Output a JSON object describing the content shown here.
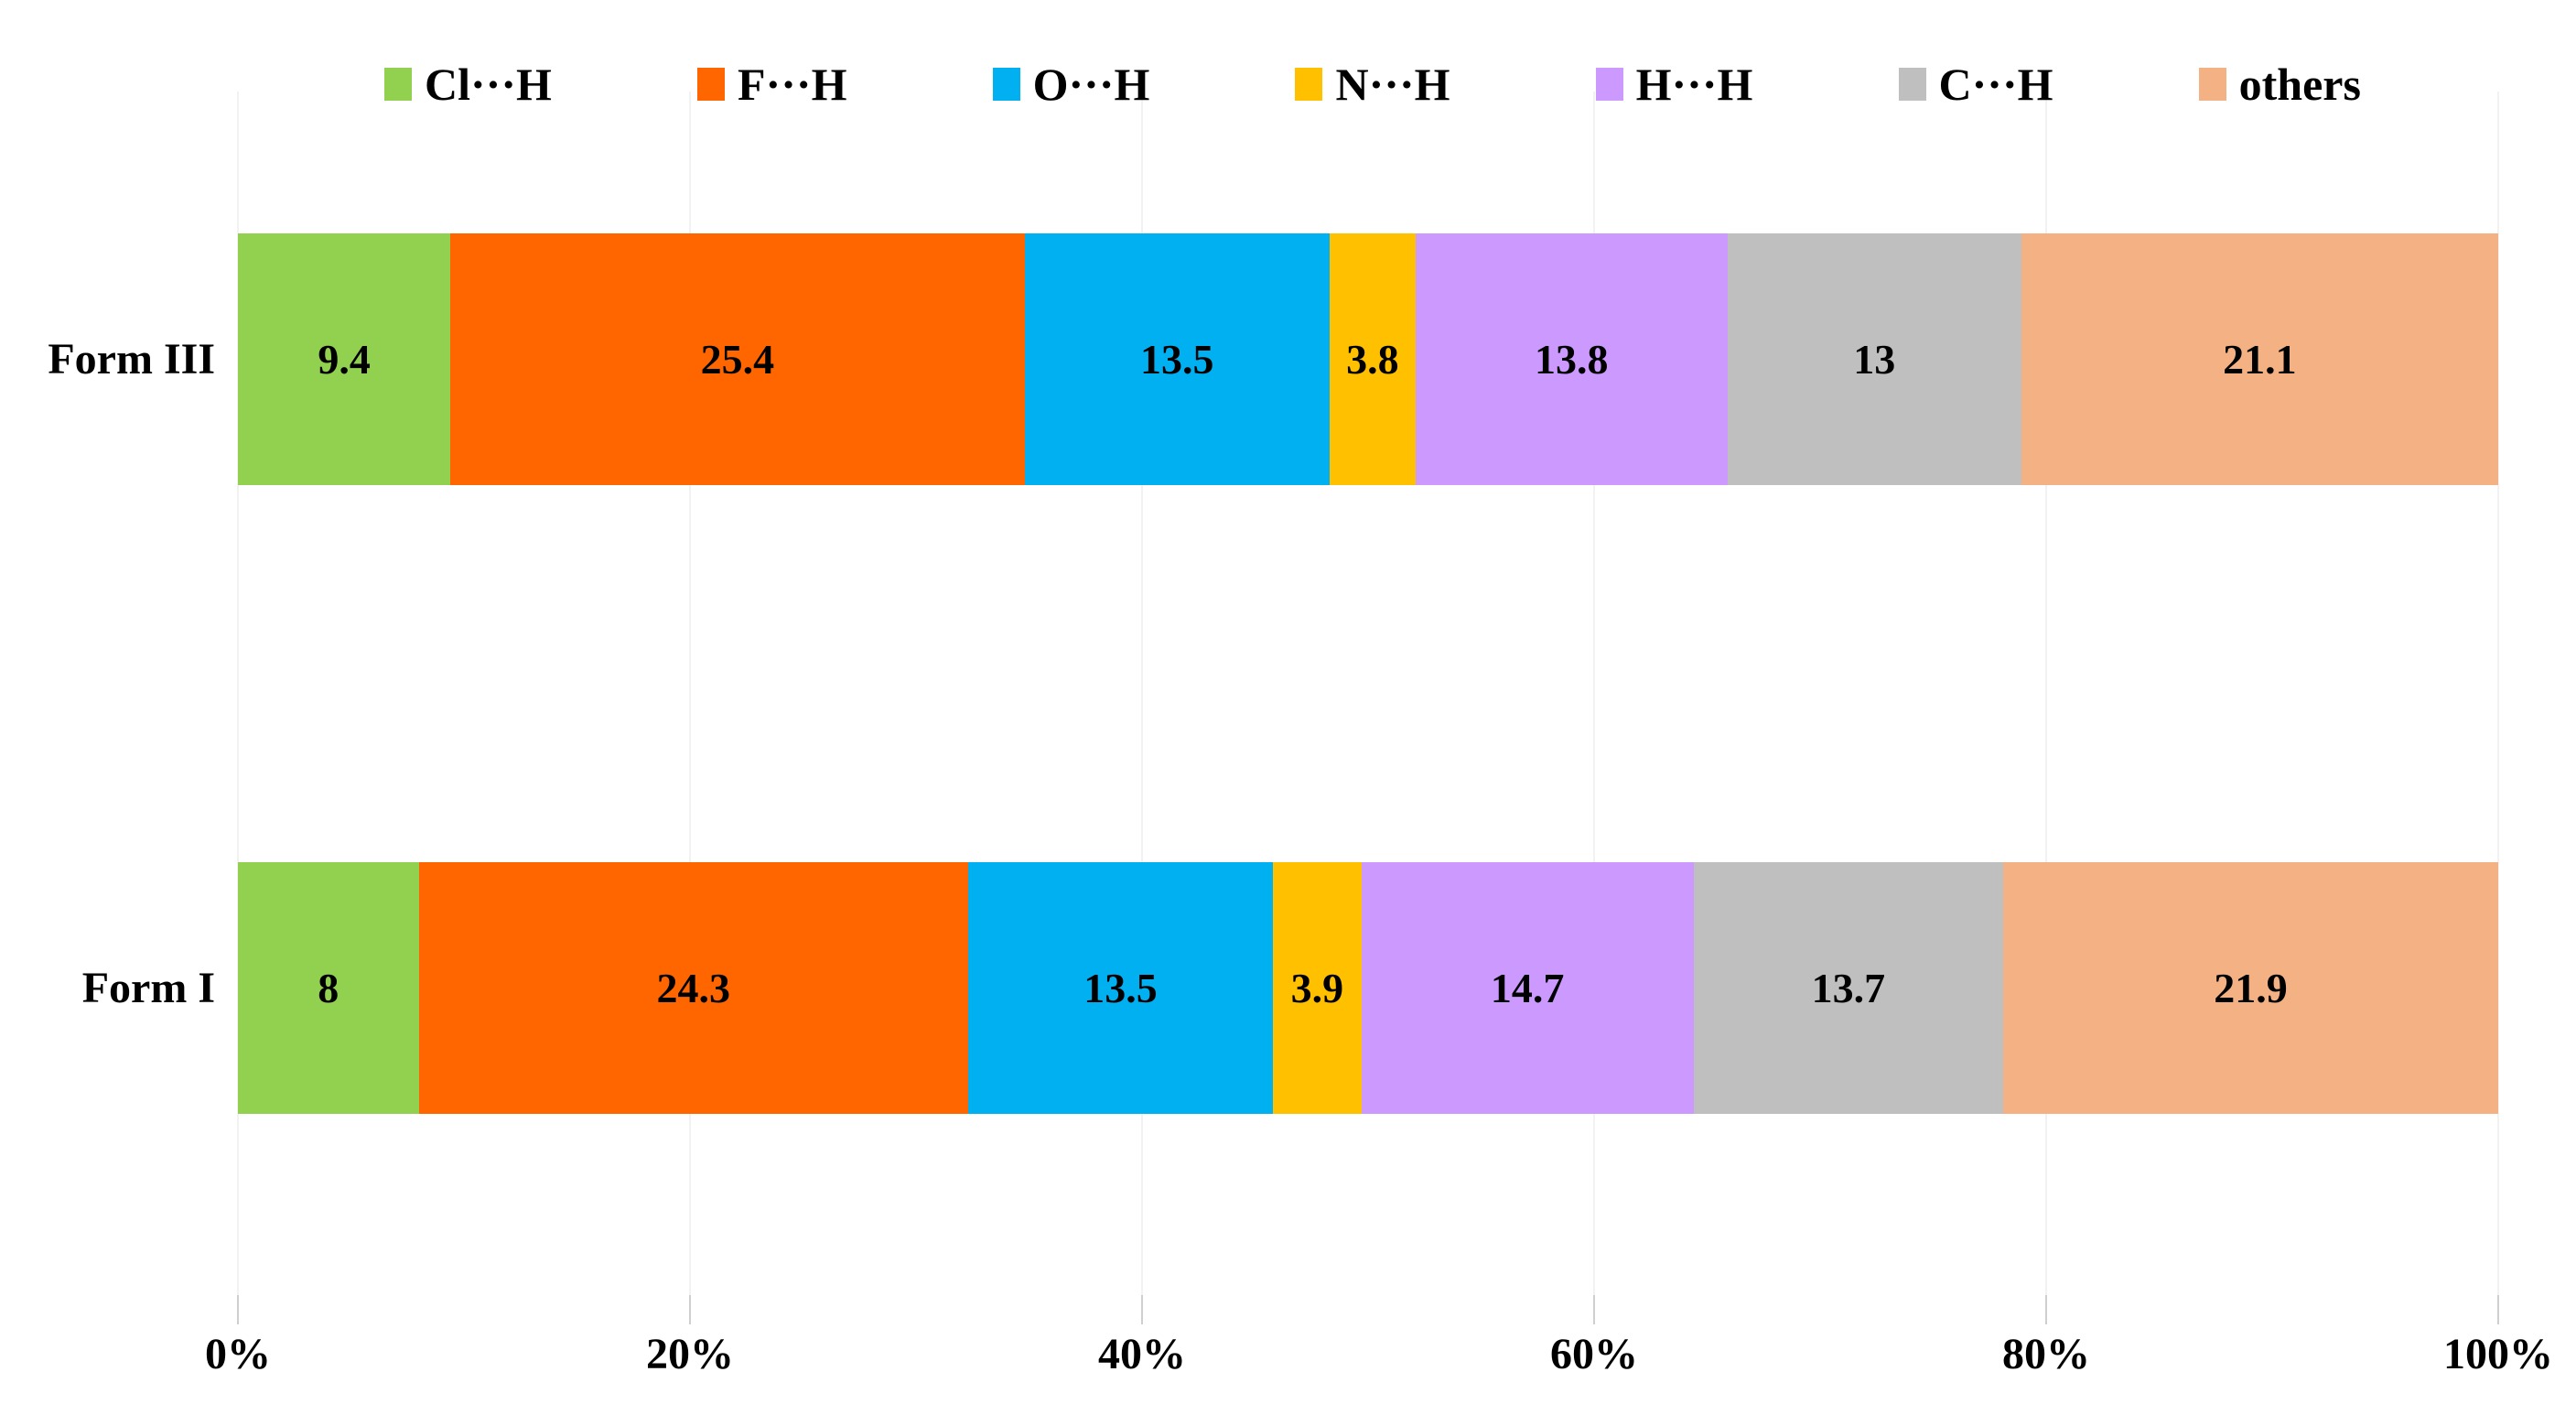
{
  "chart_data": {
    "type": "bar",
    "orientation": "horizontal",
    "stacked": true,
    "unit": "percent",
    "title": "",
    "categories": [
      "Form III",
      "Form I"
    ],
    "series": [
      {
        "name": "Cl···H",
        "color": "#92D050",
        "values": [
          9.4,
          8
        ]
      },
      {
        "name": "F···H",
        "color": "#FF6600",
        "values": [
          25.4,
          24.3
        ]
      },
      {
        "name": "O···H",
        "color": "#00B0F0",
        "values": [
          13.5,
          13.5
        ]
      },
      {
        "name": "N···H",
        "color": "#FFC000",
        "values": [
          3.8,
          3.9
        ]
      },
      {
        "name": "H···H",
        "color": "#CC99FF",
        "values": [
          13.8,
          14.7
        ]
      },
      {
        "name": "C···H",
        "color": "#BFBFBF",
        "values": [
          13,
          13.7
        ]
      },
      {
        "name": "others",
        "color": "#F4B183",
        "values": [
          21.1,
          21.9
        ]
      }
    ],
    "x_axis": {
      "min": 0,
      "max": 100,
      "ticks": [
        "0%",
        "20%",
        "40%",
        "60%",
        "80%",
        "100%"
      ]
    },
    "legend_position": "top",
    "grid": true,
    "data_labels_shown": true
  }
}
